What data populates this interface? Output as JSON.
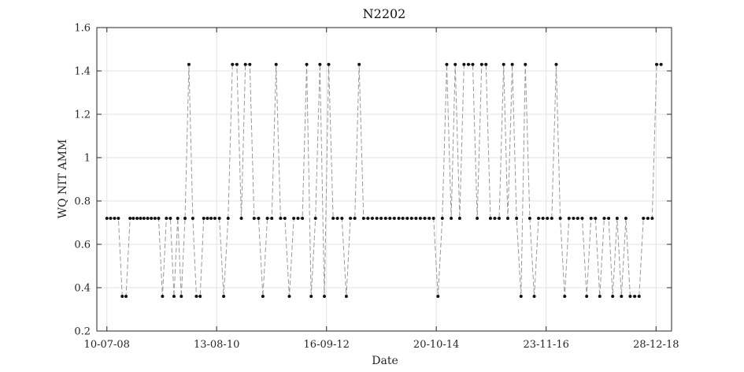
{
  "chart_data": {
    "type": "line",
    "title": "N2202",
    "xlabel": "Date",
    "ylabel": "WQ NIT AMM",
    "ylim": [
      0.2,
      1.6
    ],
    "yticks": [
      0.2,
      0.4,
      0.6,
      0.8,
      1,
      1.2,
      1.4,
      1.6
    ],
    "ytick_labels": [
      "0.2",
      "0.4",
      "0.6",
      "0.8",
      "1",
      "1.2",
      "1.4",
      "1.6"
    ],
    "xlim": [
      "2008-05-01",
      "2019-04-15"
    ],
    "xticks": [
      "2008-07-10",
      "2010-08-13",
      "2012-09-16",
      "2014-10-20",
      "2016-11-23",
      "2018-12-28"
    ],
    "xtick_labels": [
      "10-07-08",
      "13-08-10",
      "16-09-12",
      "20-10-14",
      "23-11-16",
      "28-12-18"
    ],
    "grid": true,
    "series": [
      {
        "line_style": "dashed",
        "line_color": "#9a9a9a",
        "marker_color": "#111111",
        "x": [
          "2008-07-10",
          "2008-08-05",
          "2008-09-01",
          "2008-09-28",
          "2008-10-25",
          "2008-11-20",
          "2008-12-18",
          "2009-01-10",
          "2009-02-05",
          "2009-03-01",
          "2009-03-25",
          "2009-04-20",
          "2009-05-15",
          "2009-06-10",
          "2009-07-05",
          "2009-08-01",
          "2009-08-28",
          "2009-09-25",
          "2009-10-20",
          "2009-11-15",
          "2009-12-10",
          "2010-01-05",
          "2010-02-01",
          "2010-02-28",
          "2010-03-25",
          "2010-04-20",
          "2010-05-15",
          "2010-06-10",
          "2010-07-05",
          "2010-08-01",
          "2010-09-01",
          "2010-10-01",
          "2010-11-01",
          "2010-12-01",
          "2011-01-01",
          "2011-02-01",
          "2011-03-01",
          "2011-04-01",
          "2011-05-01",
          "2011-06-01",
          "2011-07-01",
          "2011-08-01",
          "2011-09-01",
          "2011-10-01",
          "2011-11-01",
          "2011-12-01",
          "2012-01-01",
          "2012-02-01",
          "2012-03-01",
          "2012-04-01",
          "2012-05-01",
          "2012-06-01",
          "2012-07-01",
          "2012-08-01",
          "2012-09-01",
          "2012-10-01",
          "2012-11-01",
          "2012-12-01",
          "2013-01-01",
          "2013-02-01",
          "2013-03-01",
          "2013-04-01",
          "2013-05-01",
          "2013-06-01",
          "2013-07-01",
          "2013-08-01",
          "2013-09-01",
          "2013-10-01",
          "2013-11-01",
          "2013-12-01",
          "2014-01-01",
          "2014-02-01",
          "2014-03-01",
          "2014-04-01",
          "2014-05-01",
          "2014-06-01",
          "2014-07-01",
          "2014-08-01",
          "2014-09-01",
          "2014-10-01",
          "2014-11-01",
          "2014-12-01",
          "2015-01-01",
          "2015-02-01",
          "2015-03-01",
          "2015-04-01",
          "2015-05-01",
          "2015-06-01",
          "2015-07-01",
          "2015-08-01",
          "2015-09-01",
          "2015-10-01",
          "2015-11-01",
          "2015-12-01",
          "2016-01-01",
          "2016-02-01",
          "2016-03-01",
          "2016-04-01",
          "2016-05-01",
          "2016-06-01",
          "2016-07-01",
          "2016-08-01",
          "2016-09-01",
          "2016-10-01",
          "2016-11-01",
          "2016-12-01",
          "2017-01-01",
          "2017-02-01",
          "2017-03-01",
          "2017-04-01",
          "2017-05-01",
          "2017-06-01",
          "2017-07-01",
          "2017-08-01",
          "2017-09-01",
          "2017-10-01",
          "2017-11-01",
          "2017-12-01",
          "2018-01-01",
          "2018-02-01",
          "2018-03-01",
          "2018-04-01",
          "2018-05-01",
          "2018-06-01",
          "2018-07-01",
          "2018-08-01",
          "2018-09-01",
          "2018-10-01",
          "2018-11-01",
          "2018-12-01",
          "2019-01-01",
          "2019-02-01"
        ],
        "y": [
          0.72,
          0.72,
          0.72,
          0.72,
          0.36,
          0.36,
          0.72,
          0.72,
          0.72,
          0.72,
          0.72,
          0.72,
          0.72,
          0.72,
          0.72,
          0.36,
          0.72,
          0.72,
          0.36,
          0.72,
          0.36,
          0.72,
          1.43,
          0.72,
          0.36,
          0.36,
          0.72,
          0.72,
          0.72,
          0.72,
          0.72,
          0.36,
          0.72,
          1.43,
          1.43,
          0.72,
          1.43,
          1.43,
          0.72,
          0.72,
          0.36,
          0.72,
          0.72,
          1.43,
          0.72,
          0.72,
          0.36,
          0.72,
          0.72,
          0.72,
          1.43,
          0.36,
          0.72,
          1.43,
          0.36,
          1.43,
          0.72,
          0.72,
          0.72,
          0.36,
          0.72,
          0.72,
          1.43,
          0.72,
          0.72,
          0.72,
          0.72,
          0.72,
          0.72,
          0.72,
          0.72,
          0.72,
          0.72,
          0.72,
          0.72,
          0.72,
          0.72,
          0.72,
          0.72,
          0.72,
          0.36,
          0.72,
          1.43,
          0.72,
          1.43,
          0.72,
          1.43,
          1.43,
          1.43,
          0.72,
          1.43,
          1.43,
          0.72,
          0.72,
          0.72,
          1.43,
          0.72,
          1.43,
          0.72,
          0.36,
          1.43,
          0.72,
          0.36,
          0.72,
          0.72,
          0.72,
          0.72,
          1.43,
          0.72,
          0.36,
          0.72,
          0.72,
          0.72,
          0.72,
          0.36,
          0.72,
          0.72,
          0.36,
          0.72,
          0.72,
          0.36,
          0.72,
          0.36,
          0.72,
          0.36,
          0.36,
          0.36,
          0.72,
          0.72,
          0.72,
          1.43,
          1.43
        ]
      }
    ]
  }
}
